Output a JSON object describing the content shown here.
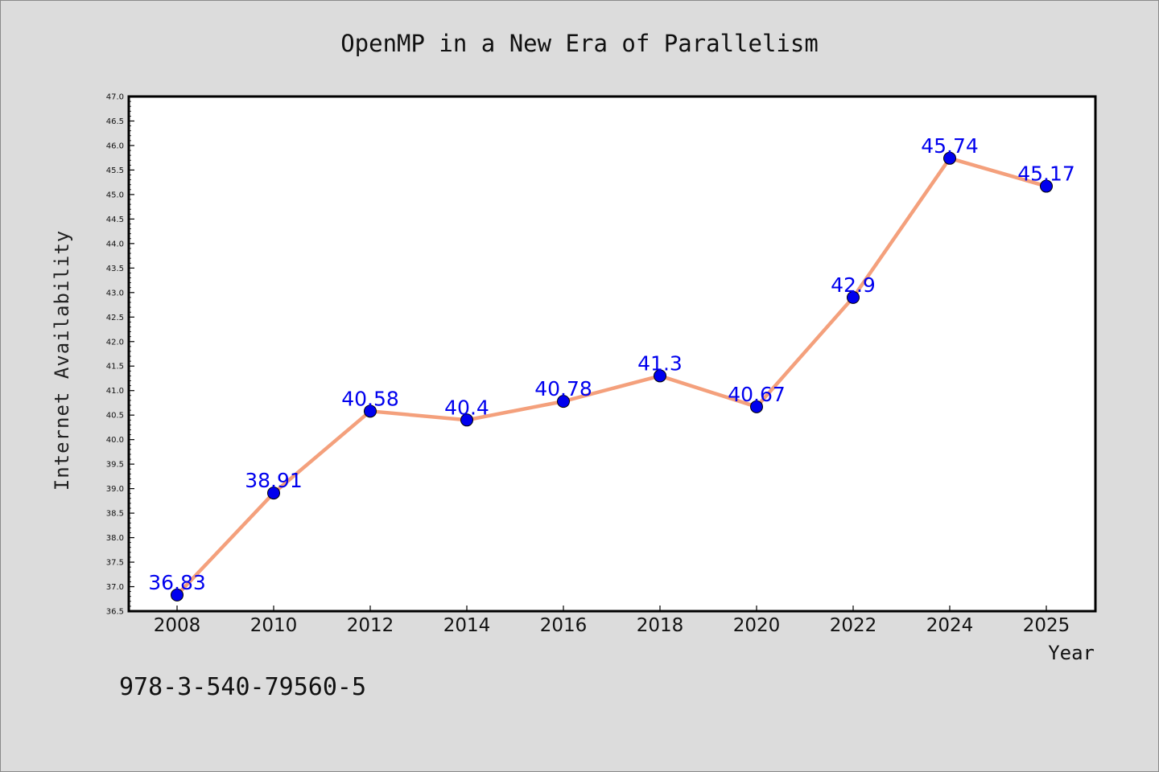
{
  "chart_data": {
    "type": "line",
    "title": "OpenMP in a New Era of Parallelism",
    "xlabel": "Year",
    "ylabel": "Internet Availability",
    "categories": [
      "2008",
      "2010",
      "2012",
      "2014",
      "2016",
      "2018",
      "2020",
      "2022",
      "2024",
      "2025"
    ],
    "series": [
      {
        "values": [
          36.83,
          38.91,
          40.58,
          40.4,
          40.78,
          41.3,
          40.67,
          42.9,
          45.74,
          45.17
        ],
        "labels": [
          "36.83",
          "38.91",
          "40.58",
          "40.4",
          "40.78",
          "41.3",
          "40.67",
          "42.9",
          "45.74",
          "45.17"
        ]
      }
    ],
    "ylim": [
      36.5,
      47.0
    ],
    "yticks": [
      "36.5",
      "37.0",
      "37.5",
      "38.0",
      "38.5",
      "39.0",
      "39.5",
      "40.0",
      "40.5",
      "41.0",
      "41.5",
      "42.0",
      "42.5",
      "43.0",
      "43.5",
      "44.0",
      "44.5",
      "45.0",
      "45.5",
      "46.0",
      "46.5",
      "47.0"
    ],
    "grid": false,
    "line_color": "#f4a07c",
    "marker_color": "#0000ee",
    "label_color": "#0000ee"
  },
  "footer_text": "978-3-540-79560-5"
}
